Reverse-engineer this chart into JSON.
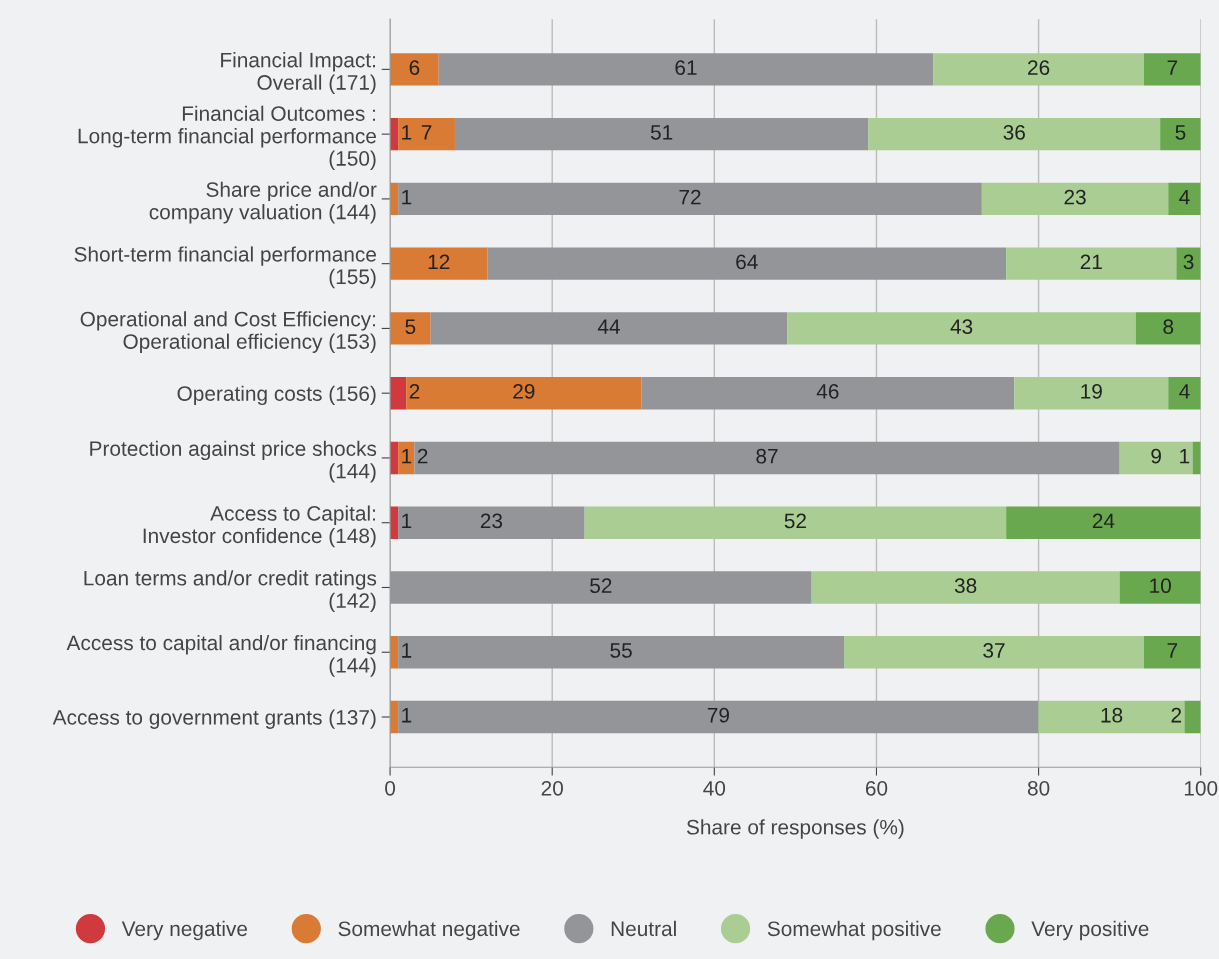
{
  "chart_data": {
    "type": "bar",
    "orientation": "horizontal",
    "stacked": true,
    "xlabel": "Share of responses (%)",
    "categories": [
      "Financial Impact:\nOverall (171)",
      "Financial Outcomes :\nLong-term financial performance\n(150)",
      "Share price and/or\ncompany valuation (144)",
      "Short-term financial performance\n(155)",
      "Operational and Cost Efficiency:\nOperational efficiency (153)",
      "Operating costs (156)",
      "Protection against price shocks\n(144)",
      "Access to Capital:\nInvestor confidence (148)",
      "Loan terms and/or credit ratings\n(142)",
      "Access to capital and/or financing\n(144)",
      "Access to government grants (137)"
    ],
    "series": [
      {
        "name": "Very negative",
        "color": "#d0393e",
        "values": [
          null,
          1,
          null,
          null,
          null,
          2,
          1,
          1,
          null,
          null,
          null
        ]
      },
      {
        "name": "Somewhat negative",
        "color": "#d97a35",
        "values": [
          6,
          7,
          1,
          12,
          5,
          29,
          2,
          null,
          null,
          1,
          1
        ]
      },
      {
        "name": "Neutral",
        "color": "#939598",
        "values": [
          61,
          51,
          72,
          64,
          44,
          46,
          87,
          23,
          52,
          55,
          79
        ]
      },
      {
        "name": "Somewhat positive",
        "color": "#a9cd93",
        "values": [
          26,
          36,
          23,
          21,
          43,
          19,
          9,
          52,
          38,
          37,
          18
        ]
      },
      {
        "name": "Very positive",
        "color": "#6aa84f",
        "values": [
          7,
          5,
          4,
          3,
          8,
          4,
          1,
          24,
          10,
          7,
          2
        ]
      }
    ],
    "xlim": [
      0,
      100
    ],
    "xticks": [
      0,
      20,
      40,
      60,
      80,
      100
    ],
    "grid": "x",
    "legend": "bottom",
    "data_labels": true
  }
}
